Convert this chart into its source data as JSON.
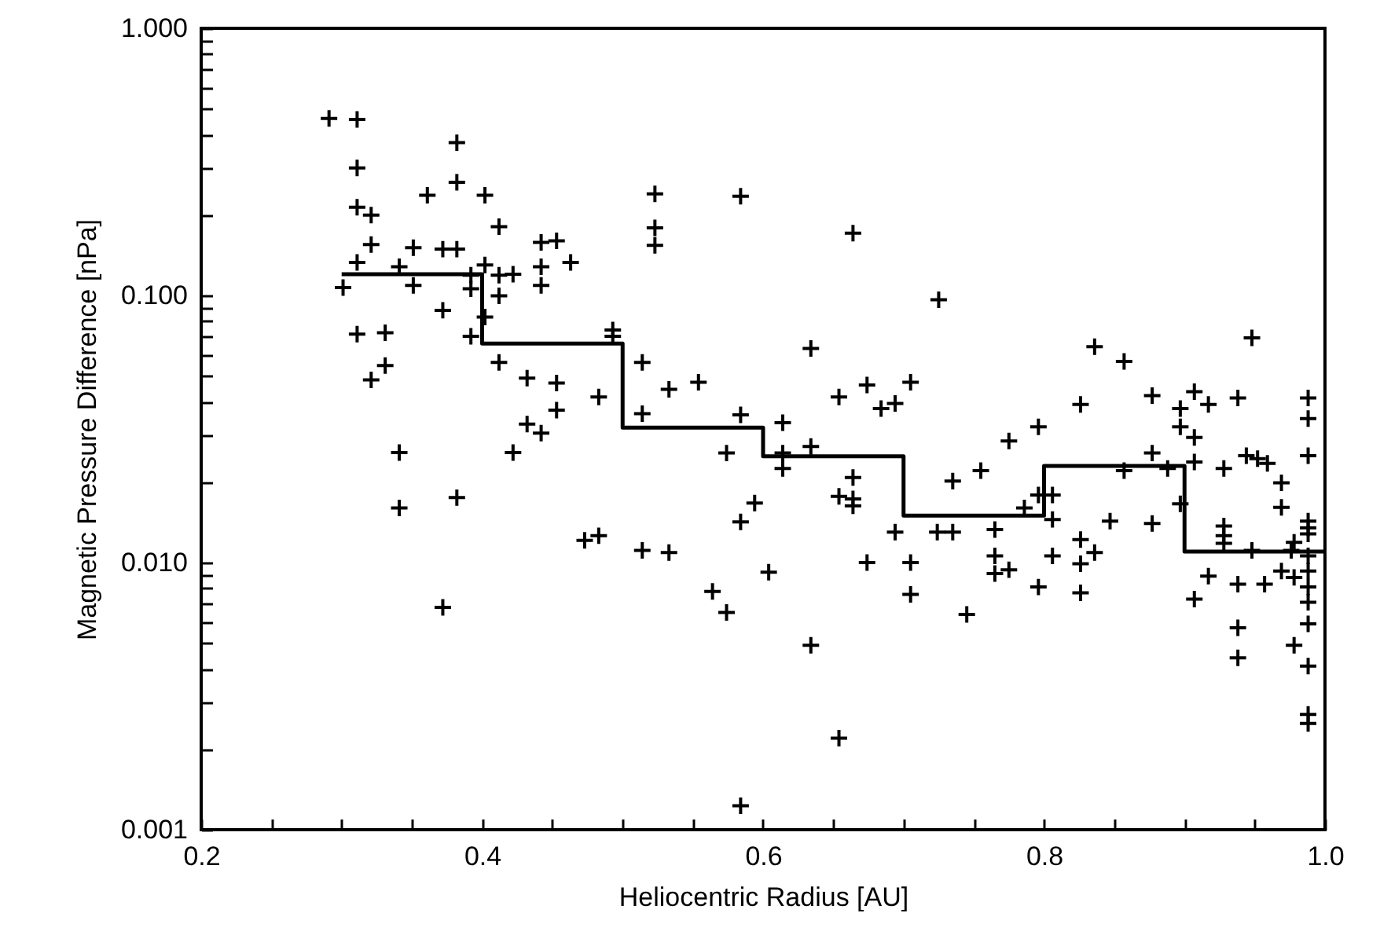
{
  "chart_data": {
    "type": "scatter",
    "xlabel": "Heliocentric Radius [AU]",
    "ylabel": "Magnetic Pressure Difference [nPa]",
    "log": "y",
    "grid": false,
    "xlim": [
      0.2,
      1.0
    ],
    "xticks": [
      {
        "value": 0.2,
        "label": "0.2"
      },
      {
        "value": 0.25,
        "label": null
      },
      {
        "value": 0.3,
        "label": null
      },
      {
        "value": 0.35,
        "label": null
      },
      {
        "value": 0.4,
        "label": "0.4"
      },
      {
        "value": 0.45,
        "label": null
      },
      {
        "value": 0.5,
        "label": null
      },
      {
        "value": 0.55,
        "label": null
      },
      {
        "value": 0.6,
        "label": "0.6"
      },
      {
        "value": 0.65,
        "label": null
      },
      {
        "value": 0.7,
        "label": null
      },
      {
        "value": 0.75,
        "label": null
      },
      {
        "value": 0.8,
        "label": "0.8"
      },
      {
        "value": 0.85,
        "label": null
      },
      {
        "value": 0.9,
        "label": null
      },
      {
        "value": 0.95,
        "label": null
      },
      {
        "value": 1.0,
        "label": "1.0"
      }
    ],
    "ylim": [
      0.001,
      1.0
    ],
    "yticks": [
      {
        "value": 0.001,
        "label": "0.001"
      },
      {
        "value": 0.002,
        "label": null
      },
      {
        "value": 0.003,
        "label": null
      },
      {
        "value": 0.004,
        "label": null
      },
      {
        "value": 0.005,
        "label": null
      },
      {
        "value": 0.006,
        "label": null
      },
      {
        "value": 0.007,
        "label": null
      },
      {
        "value": 0.008,
        "label": null
      },
      {
        "value": 0.009,
        "label": null
      },
      {
        "value": 0.01,
        "label": "0.010"
      },
      {
        "value": 0.02,
        "label": null
      },
      {
        "value": 0.03,
        "label": null
      },
      {
        "value": 0.04,
        "label": null
      },
      {
        "value": 0.05,
        "label": null
      },
      {
        "value": 0.06,
        "label": null
      },
      {
        "value": 0.07,
        "label": null
      },
      {
        "value": 0.08,
        "label": null
      },
      {
        "value": 0.09,
        "label": null
      },
      {
        "value": 0.1,
        "label": "0.100"
      },
      {
        "value": 0.2,
        "label": null
      },
      {
        "value": 0.3,
        "label": null
      },
      {
        "value": 0.4,
        "label": null
      },
      {
        "value": 0.5,
        "label": null
      },
      {
        "value": 0.6,
        "label": null
      },
      {
        "value": 0.7,
        "label": null
      },
      {
        "value": 0.8,
        "label": null
      },
      {
        "value": 0.9,
        "label": null
      },
      {
        "value": 1.0,
        "label": "1.000"
      }
    ],
    "series": [
      {
        "marker": "cross",
        "color": "#000000",
        "x": [
          0.291,
          0.311,
          0.382,
          0.311,
          0.382,
          0.361,
          0.402,
          0.311,
          0.321,
          0.412,
          0.321,
          0.351,
          0.372,
          0.382,
          0.442,
          0.453,
          0.311,
          0.341,
          0.392,
          0.402,
          0.412,
          0.422,
          0.442,
          0.463,
          0.301,
          0.351,
          0.392,
          0.442,
          0.412,
          0.372,
          0.402,
          0.311,
          0.331,
          0.392,
          0.331,
          0.321,
          0.412,
          0.432,
          0.453,
          0.453,
          0.432,
          0.442,
          0.422,
          0.341,
          0.341,
          0.382,
          0.372,
          0.523,
          0.584,
          0.523,
          0.523,
          0.664,
          0.725,
          0.493,
          0.493,
          0.514,
          0.483,
          0.533,
          0.554,
          0.634,
          0.514,
          0.584,
          0.574,
          0.614,
          0.614,
          0.614,
          0.634,
          0.654,
          0.674,
          0.684,
          0.694,
          0.705,
          0.664,
          0.654,
          0.664,
          0.664,
          0.735,
          0.724,
          0.735,
          0.594,
          0.584,
          0.473,
          0.483,
          0.514,
          0.533,
          0.694,
          0.674,
          0.705,
          0.705,
          0.604,
          0.564,
          0.574,
          0.634,
          0.654,
          0.584,
          0.745,
          0.755,
          0.765,
          0.765,
          0.765,
          0.775,
          0.775,
          0.796,
          0.786,
          0.796,
          0.796,
          0.806,
          0.806,
          0.806,
          0.826,
          0.836,
          0.857,
          0.826,
          0.826,
          0.826,
          0.836,
          0.847,
          0.857,
          0.877,
          0.877,
          0.877,
          0.888,
          0.897,
          0.897,
          0.897,
          0.907,
          0.907,
          0.907,
          0.907,
          0.917,
          0.917,
          0.928,
          0.928,
          0.928,
          0.928,
          0.938,
          0.938,
          0.938,
          0.938,
          0.944,
          0.948,
          0.952,
          0.959,
          0.969,
          0.969,
          0.948,
          0.957,
          0.969,
          0.978,
          0.978,
          0.978,
          0.976,
          0.988,
          0.988,
          0.988,
          0.988,
          0.988,
          0.988,
          0.988,
          0.988,
          0.988,
          0.988,
          0.988,
          0.988,
          0.988,
          0.988
        ],
        "values": [
          0.46,
          0.456,
          0.373,
          0.3,
          0.265,
          0.237,
          0.237,
          0.214,
          0.2,
          0.181,
          0.155,
          0.151,
          0.149,
          0.149,
          0.158,
          0.16,
          0.133,
          0.128,
          0.119,
          0.13,
          0.119,
          0.12,
          0.128,
          0.133,
          0.107,
          0.109,
          0.106,
          0.109,
          0.0996,
          0.088,
          0.083,
          0.0716,
          0.0725,
          0.0703,
          0.0546,
          0.0483,
          0.0561,
          0.049,
          0.047,
          0.0372,
          0.033,
          0.0305,
          0.0258,
          0.0258,
          0.016,
          0.0175,
          0.0068,
          0.24,
          0.235,
          0.179,
          0.154,
          0.171,
          0.0964,
          0.0742,
          0.0703,
          0.0561,
          0.0417,
          0.0445,
          0.0473,
          0.0633,
          0.0361,
          0.0357,
          0.0257,
          0.0334,
          0.0257,
          0.0225,
          0.0272,
          0.0417,
          0.0462,
          0.0377,
          0.0394,
          0.0473,
          0.0208,
          0.0177,
          0.0173,
          0.0163,
          0.0202,
          0.013,
          0.013,
          0.0167,
          0.0142,
          0.0121,
          0.0126,
          0.0111,
          0.0109,
          0.013,
          0.01,
          0.01,
          0.0076,
          0.0092,
          0.0078,
          0.0065,
          0.0049,
          0.0022,
          0.00123,
          0.0064,
          0.0221,
          0.0133,
          0.0106,
          0.0091,
          0.0094,
          0.0285,
          0.0322,
          0.016,
          0.0179,
          0.0081,
          0.0179,
          0.0145,
          0.0106,
          0.0391,
          0.0643,
          0.0566,
          0.0122,
          0.0099,
          0.0077,
          0.0109,
          0.0143,
          0.0221,
          0.0422,
          0.0257,
          0.014,
          0.0225,
          0.0377,
          0.0322,
          0.0166,
          0.0436,
          0.0294,
          0.0238,
          0.0073,
          0.0391,
          0.0089,
          0.0225,
          0.0137,
          0.0126,
          0.0118,
          0.0413,
          0.0083,
          0.0057,
          0.0044,
          0.0251,
          0.0694,
          0.0245,
          0.0235,
          0.0199,
          0.0161,
          0.0111,
          0.0083,
          0.0093,
          0.0119,
          0.0088,
          0.0049,
          0.0111,
          0.0413,
          0.0346,
          0.0251,
          0.0143,
          0.0135,
          0.0128,
          0.0106,
          0.0093,
          0.0081,
          0.0071,
          0.0059,
          0.0041,
          0.0027,
          0.0025
        ]
      },
      {
        "type": "step",
        "color": "#000000",
        "x": [
          0.3,
          0.4,
          0.5,
          0.6,
          0.7,
          0.8,
          0.9,
          1.0
        ],
        "values": [
          0.12,
          0.066,
          0.032,
          0.025,
          0.015,
          0.023,
          0.011,
          0.011
        ]
      }
    ]
  }
}
